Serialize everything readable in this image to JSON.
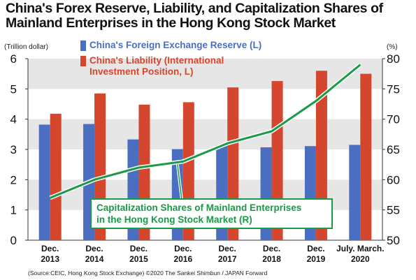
{
  "title_lines": [
    "China's Forex Reserve, Liability, and Capitalization Shares of",
    "Mainland Enterprises in the Hong Kong Stock Market"
  ],
  "source": "(Source:CEIC, Hong Kong Stock Exchange) ©2020 The Sankei Shimbun / JAPAN Forward",
  "colors": {
    "reserve": "#4a6fc0",
    "liability": "#d5462f",
    "capitalization": "#1a9a45",
    "band": "#e6e6e6"
  },
  "chart_data": {
    "type": "bar",
    "categories": [
      [
        "Dec.",
        "2013"
      ],
      [
        "Dec.",
        "2014"
      ],
      [
        "Dec.",
        "2015"
      ],
      [
        "Dec.",
        "2016"
      ],
      [
        "Dec.",
        "2017"
      ],
      [
        "Dec.",
        "2018"
      ],
      [
        "Dec.",
        "2019"
      ],
      [
        "July. March.",
        "2020"
      ]
    ],
    "series": [
      {
        "name": "China's Foreign Exchange Reserve (L)",
        "type": "bar",
        "axis": "left",
        "values": [
          3.82,
          3.84,
          3.33,
          3.01,
          3.14,
          3.07,
          3.11,
          3.15
        ]
      },
      {
        "name": "China's Liability  (International Investment Position, L)",
        "type": "bar",
        "axis": "left",
        "values": [
          4.18,
          4.85,
          4.48,
          4.56,
          5.05,
          5.26,
          5.6,
          5.5
        ]
      },
      {
        "name": "Capitalization Shares of Mainland Enterprises in the Hong Kong Stock Market (R)",
        "type": "line",
        "axis": "right",
        "values": [
          57,
          60,
          62,
          63,
          66,
          68,
          73,
          79
        ]
      }
    ],
    "legend_lines": [
      [
        "China's Foreign Exchange Reserve (L)"
      ],
      [
        "China's Liability  (International",
        "Investment Position, L)"
      ]
    ],
    "annotation_lines": [
      "Capitalization Shares of Mainland Enterprises",
      "in the Hong Kong Stock Market (R)"
    ],
    "ylabel_left": "(Trillion dollar)",
    "ylabel_right": "(%)",
    "ylim_left": [
      0,
      6
    ],
    "ylim_right": [
      50,
      80
    ],
    "yticks_left": [
      0,
      1,
      2,
      3,
      4,
      5,
      6
    ],
    "yticks_right": [
      50,
      55,
      60,
      65,
      70,
      75,
      80
    ],
    "grid": "alternating horizontal bands",
    "legend_position": "top-left"
  }
}
